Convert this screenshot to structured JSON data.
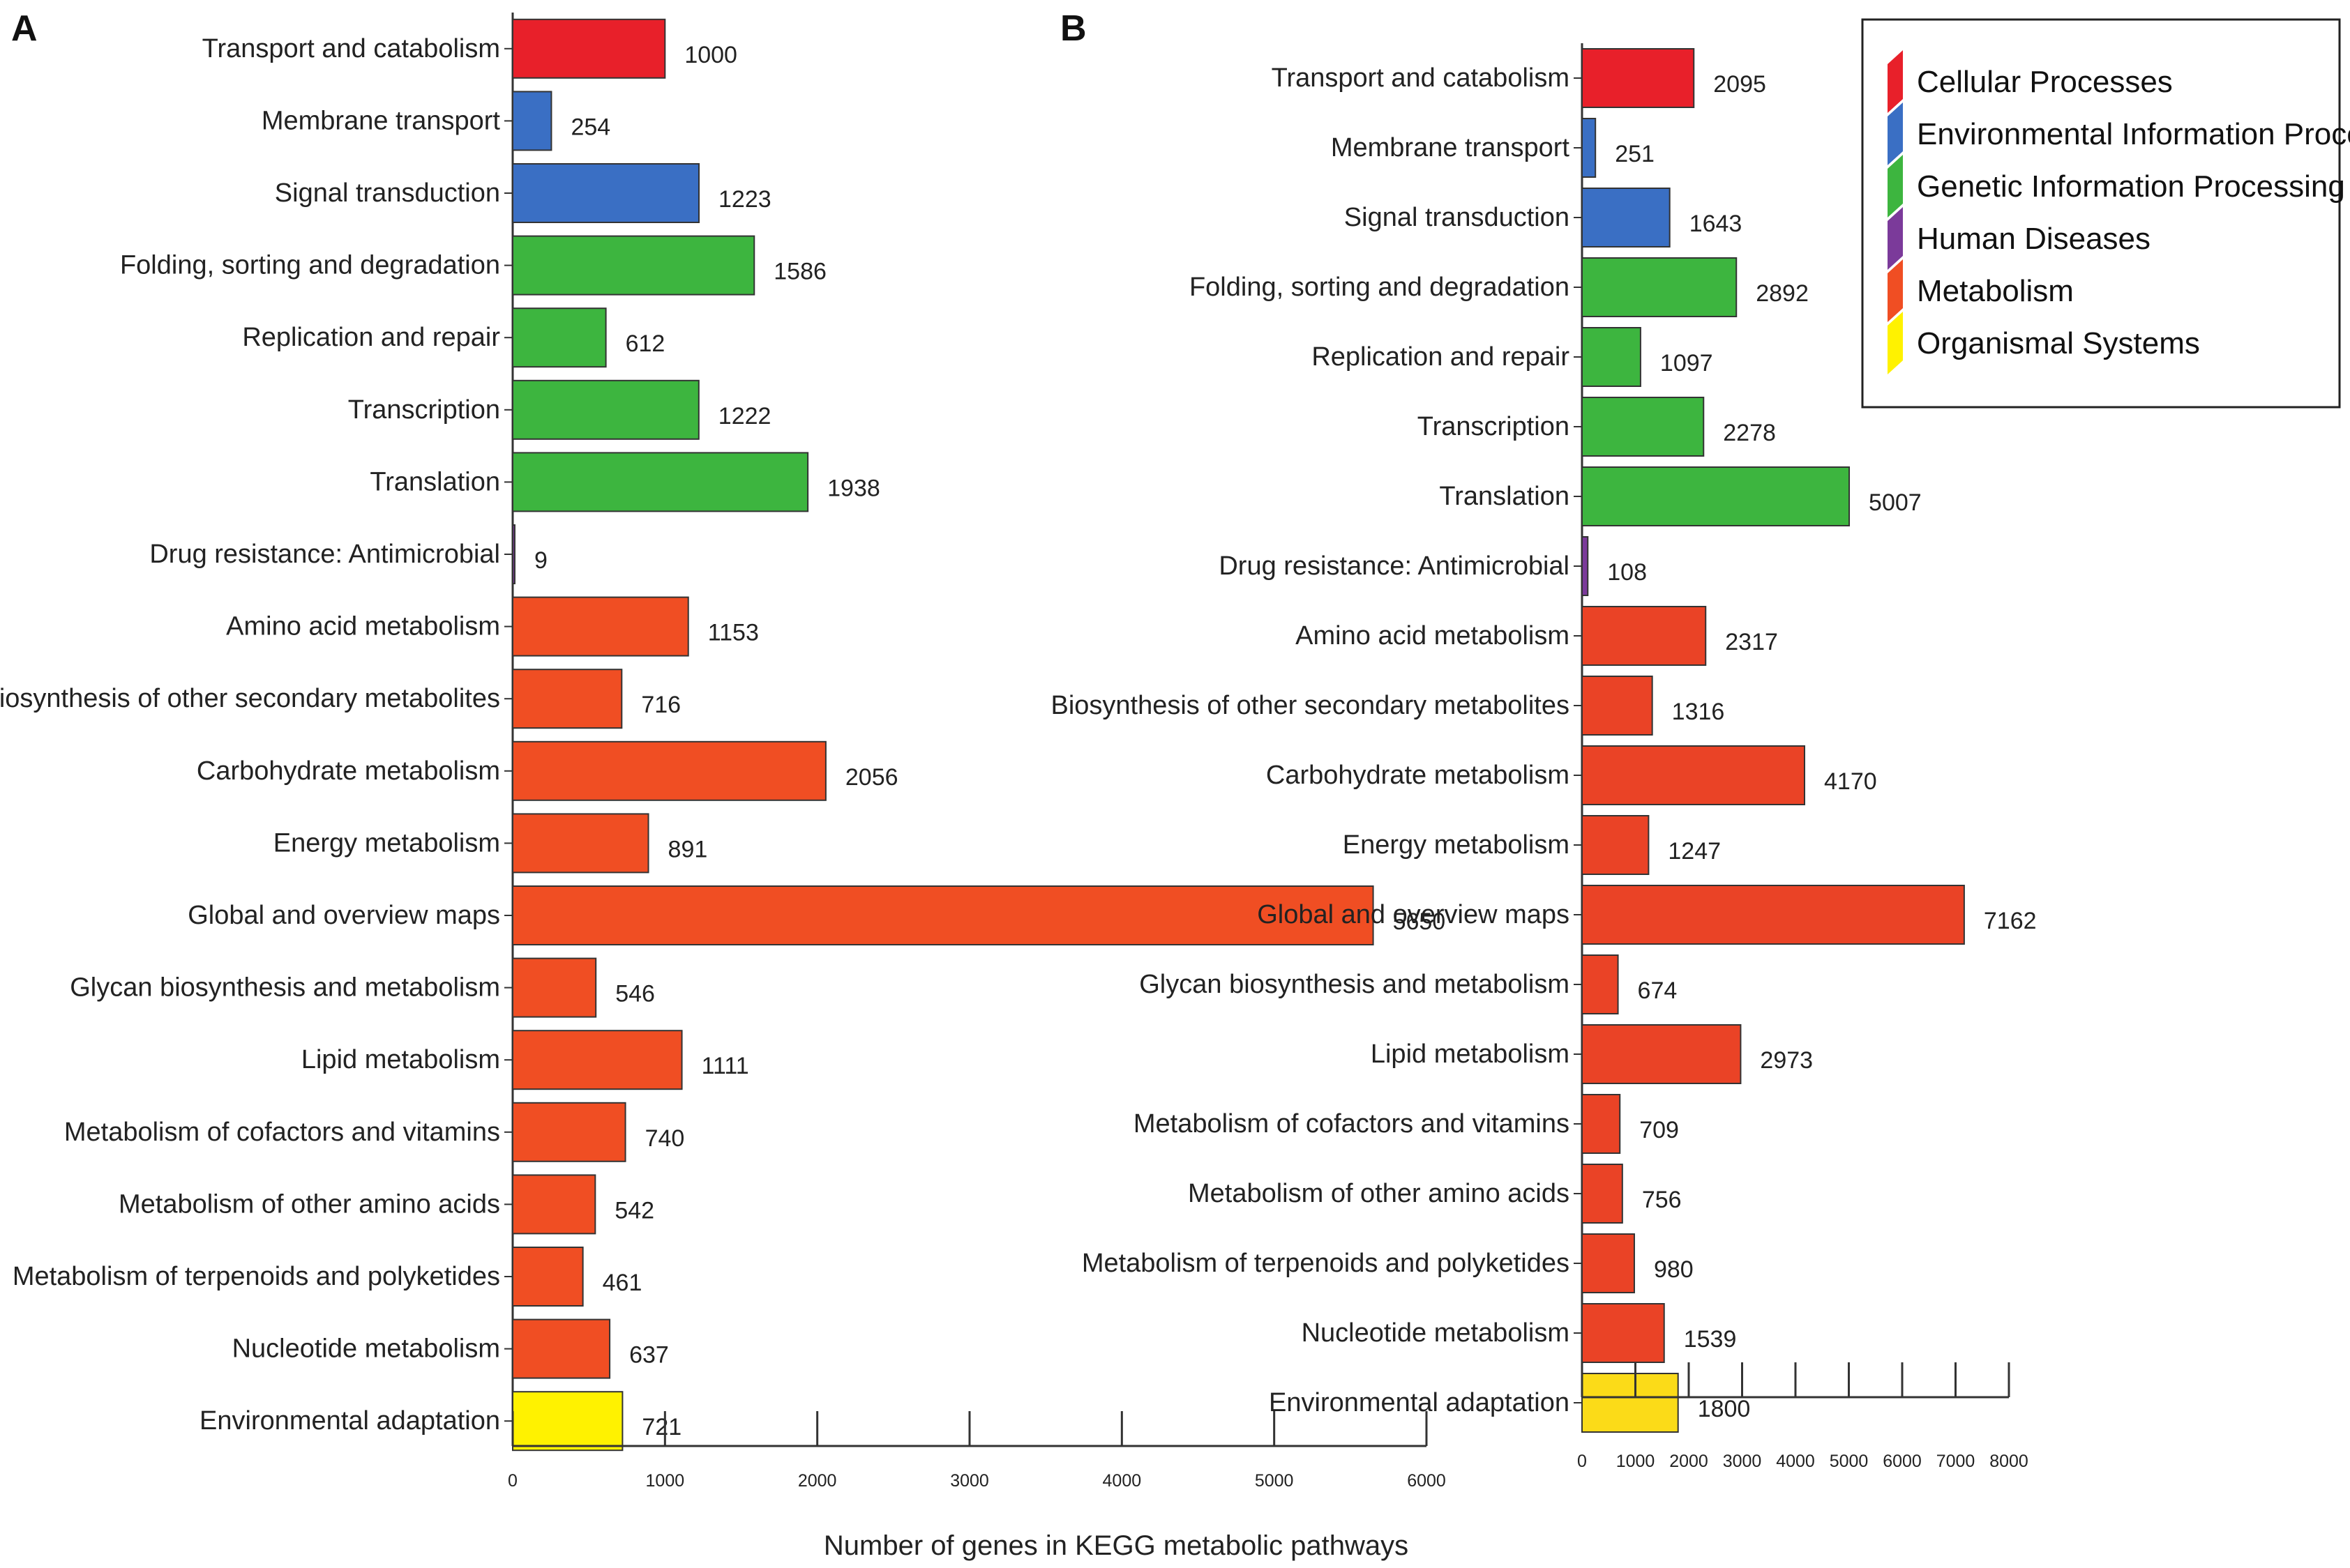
{
  "chart_data": [
    {
      "type": "bar",
      "orientation": "horizontal",
      "panel": "A",
      "categories": [
        "Transport and catabolism",
        "Membrane transport",
        "Signal transduction",
        "Folding, sorting and degradation",
        "Replication and repair",
        "Transcription",
        "Translation",
        "Drug resistance: Antimicrobial",
        "Amino acid metabolism",
        "Biosynthesis of other secondary metabolites",
        "Carbohydrate metabolism",
        "Energy metabolism",
        "Global and overview maps",
        "Glycan biosynthesis and metabolism",
        "Lipid metabolism",
        "Metabolism of cofactors and vitamins",
        "Metabolism of other amino acids",
        "Metabolism of terpenoids and polyketides",
        "Nucleotide metabolism",
        "Environmental adaptation"
      ],
      "values": [
        1000,
        254,
        1223,
        1586,
        612,
        1222,
        1938,
        9,
        1153,
        716,
        2056,
        891,
        5650,
        546,
        1111,
        740,
        542,
        461,
        637,
        721
      ],
      "value_labels": [
        "1000",
        "254",
        "1223",
        "1586",
        "612",
        "1222",
        "1938",
        "9",
        "1153",
        "716",
        "2056",
        "891",
        "5650",
        "546",
        "1111",
        "740",
        "542",
        "461",
        "637",
        "721"
      ],
      "groups": [
        "Cellular Processes",
        "Environmental Information Processing",
        "Environmental Information Processing",
        "Genetic Information Processing",
        "Genetic Information Processing",
        "Genetic Information Processing",
        "Genetic Information Processing",
        "Human Diseases",
        "Metabolism",
        "Metabolism",
        "Metabolism",
        "Metabolism",
        "Metabolism",
        "Metabolism",
        "Metabolism",
        "Metabolism",
        "Metabolism",
        "Metabolism",
        "Metabolism",
        "Organismal Systems"
      ],
      "xlim": [
        0,
        6000
      ],
      "xticks": [
        0,
        1000,
        2000,
        3000,
        4000,
        5000,
        6000
      ],
      "xtick_labels": [
        "0",
        "1000",
        "2000",
        "3000",
        "4000",
        "5000",
        "6000"
      ]
    },
    {
      "type": "bar",
      "orientation": "horizontal",
      "panel": "B",
      "categories": [
        "Transport and catabolism",
        "Membrane transport",
        "Signal transduction",
        "Folding, sorting and degradation",
        "Replication and repair",
        "Transcription",
        "Translation",
        "Drug resistance: Antimicrobial",
        "Amino acid metabolism",
        "Biosynthesis of other secondary metabolites",
        "Carbohydrate metabolism",
        "Energy metabolism",
        "Global and overview maps",
        "Glycan biosynthesis and metabolism",
        "Lipid metabolism",
        "Metabolism of cofactors and vitamins",
        "Metabolism of other amino acids",
        "Metabolism of terpenoids and polyketides",
        "Nucleotide metabolism",
        "Environmental adaptation"
      ],
      "values": [
        2095,
        251,
        1643,
        2892,
        1097,
        2278,
        5007,
        108,
        2317,
        1316,
        4170,
        1247,
        7162,
        674,
        2973,
        709,
        756,
        980,
        1539,
        1800
      ],
      "value_labels": [
        "2095",
        "251",
        "1643",
        "2892",
        "1097",
        "2278",
        "5007",
        "108",
        "2317",
        "1316",
        "4170",
        "1247",
        "7162",
        "674",
        "2973",
        "709",
        "756",
        "980",
        "1539",
        "1800"
      ],
      "groups": [
        "Cellular Processes",
        "Environmental Information Processing",
        "Environmental Information Processing",
        "Genetic Information Processing",
        "Genetic Information Processing",
        "Genetic Information Processing",
        "Genetic Information Processing",
        "Human Diseases",
        "Metabolism",
        "Metabolism",
        "Metabolism",
        "Metabolism",
        "Metabolism",
        "Metabolism",
        "Metabolism",
        "Metabolism",
        "Metabolism",
        "Metabolism",
        "Metabolism",
        "Organismal Systems"
      ],
      "xlim": [
        0,
        8000
      ],
      "xticks": [
        0,
        1000,
        2000,
        3000,
        4000,
        5000,
        6000,
        7000,
        8000
      ],
      "xtick_labels": [
        "0",
        "1000",
        "2000",
        "3000",
        "4000",
        "5000",
        "6000",
        "7000",
        "8000"
      ]
    }
  ],
  "xlabel": "Number of genes in KEGG metabolic pathways",
  "legend": {
    "placement": "top-right",
    "entries": [
      {
        "label": "Cellular Processes",
        "color": "#e8202a"
      },
      {
        "label": "Environmental Information Processing",
        "color": "#3a6fc4"
      },
      {
        "label": "Genetic Information Processing",
        "color": "#3db53f"
      },
      {
        "label": "Human Diseases",
        "color": "#7b3a9a"
      },
      {
        "label": "Metabolism",
        "color": "#f04e23"
      },
      {
        "label": "Organismal Systems",
        "color": "#fff200"
      }
    ]
  },
  "bar_colors_panel_a": {
    "Cellular Processes": "#e8202a",
    "Environmental Information Processing": "#3a6fc4",
    "Genetic Information Processing": "#3db53f",
    "Human Diseases": "#7b3a9a",
    "Metabolism": "#f04e23",
    "Organismal Systems": "#fff200"
  },
  "bar_colors_panel_b": {
    "Cellular Processes": "#e8202a",
    "Environmental Information Processing": "#3a6fc4",
    "Genetic Information Processing": "#3db53f",
    "Human Diseases": "#7b3a9a",
    "Metabolism": "#ea4326",
    "Organismal Systems": "#fbdb18"
  }
}
